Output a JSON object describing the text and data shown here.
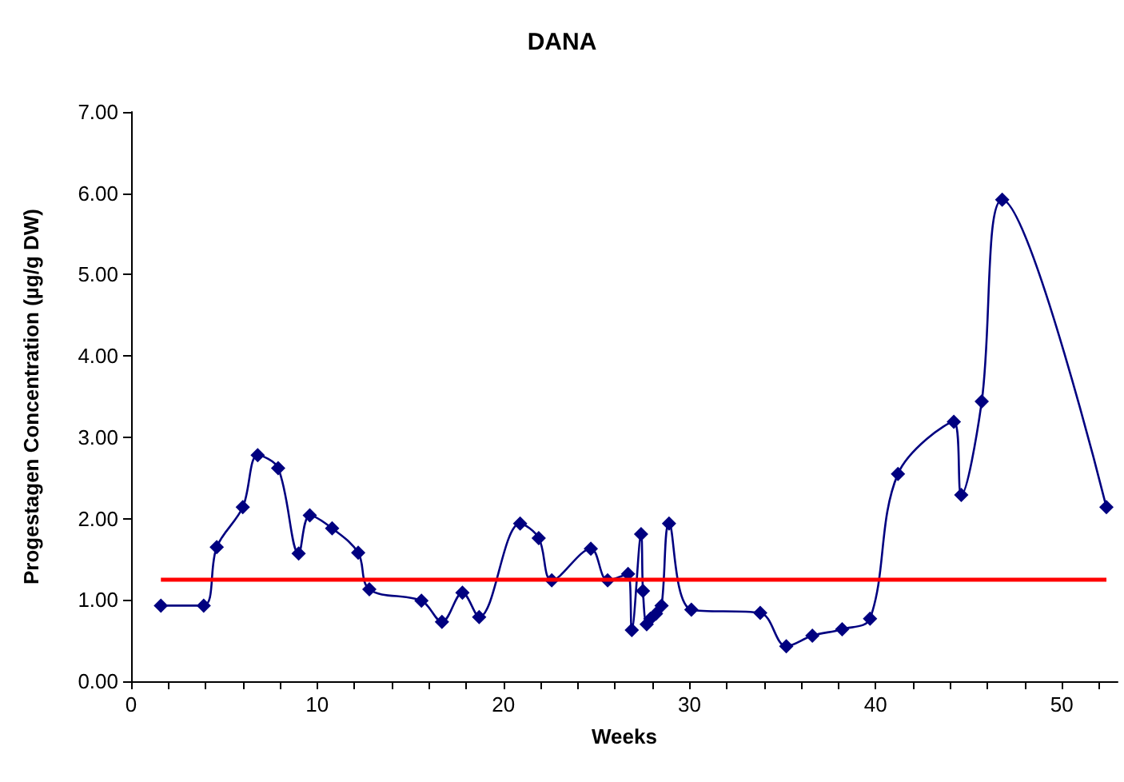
{
  "chart_data": {
    "type": "line",
    "title": "DANA",
    "xlabel": "Weeks",
    "ylabel": "Progestagen Concentration (µg/g DW)",
    "x": [
      1.6,
      3.9,
      4.6,
      6.0,
      6.8,
      7.9,
      9.0,
      9.6,
      10.8,
      12.2,
      12.8,
      15.6,
      16.7,
      17.8,
      18.7,
      20.9,
      21.9,
      22.6,
      24.7,
      25.6,
      26.7,
      26.9,
      27.4,
      27.5,
      27.7,
      27.9,
      28.2,
      28.5,
      28.9,
      30.1,
      33.8,
      35.2,
      36.6,
      38.2,
      39.7,
      41.2,
      44.2,
      44.6,
      45.7,
      46.8,
      52.4
    ],
    "series": [
      {
        "color": "#000080",
        "values": [
          0.93,
          0.93,
          1.65,
          2.14,
          2.78,
          2.62,
          1.57,
          2.04,
          1.88,
          1.58,
          1.13,
          0.99,
          0.73,
          1.09,
          0.79,
          1.94,
          1.76,
          1.24,
          1.63,
          1.24,
          1.32,
          0.63,
          1.81,
          1.11,
          0.7,
          0.77,
          0.83,
          0.93,
          1.94,
          0.88,
          0.84,
          0.43,
          0.56,
          0.64,
          0.77,
          2.55,
          3.19,
          2.29,
          3.44,
          5.92,
          2.14
        ]
      }
    ],
    "xlim": [
      0,
      53
    ],
    "xticks": [
      0,
      {
        "value": 2,
        "label": null
      },
      {
        "value": 4,
        "label": null
      },
      {
        "value": 6,
        "label": null
      },
      {
        "value": 8,
        "label": null
      },
      10,
      {
        "value": 12,
        "label": null
      },
      {
        "value": 14,
        "label": null
      },
      {
        "value": 16,
        "label": null
      },
      {
        "value": 18,
        "label": null
      },
      20,
      {
        "value": 22,
        "label": null
      },
      {
        "value": 24,
        "label": null
      },
      {
        "value": 26,
        "label": null
      },
      {
        "value": 28,
        "label": null
      },
      30,
      {
        "value": 32,
        "label": null
      },
      {
        "value": 34,
        "label": null
      },
      {
        "value": 36,
        "label": null
      },
      {
        "value": 38,
        "label": null
      },
      40,
      {
        "value": 42,
        "label": null
      },
      {
        "value": 44,
        "label": null
      },
      {
        "value": 46,
        "label": null
      },
      {
        "value": 48,
        "label": null
      },
      50,
      {
        "value": 52,
        "label": null
      }
    ],
    "ylim": [
      0,
      7
    ],
    "yticks": [
      {
        "value": 0,
        "label": "0.00"
      },
      {
        "value": 1,
        "label": "1.00"
      },
      {
        "value": 2,
        "label": "2.00"
      },
      {
        "value": 3,
        "label": "3.00"
      },
      {
        "value": 4,
        "label": "4.00"
      },
      {
        "value": 5,
        "label": "5.00"
      },
      {
        "value": 6,
        "label": "6.00"
      },
      {
        "value": 7,
        "label": "7.00"
      }
    ],
    "ref_lines": [
      {
        "axis": "y",
        "value": 1.25,
        "color": "#ff0000"
      }
    ],
    "marker": "diamond",
    "line_style": "solid",
    "grid": false
  }
}
